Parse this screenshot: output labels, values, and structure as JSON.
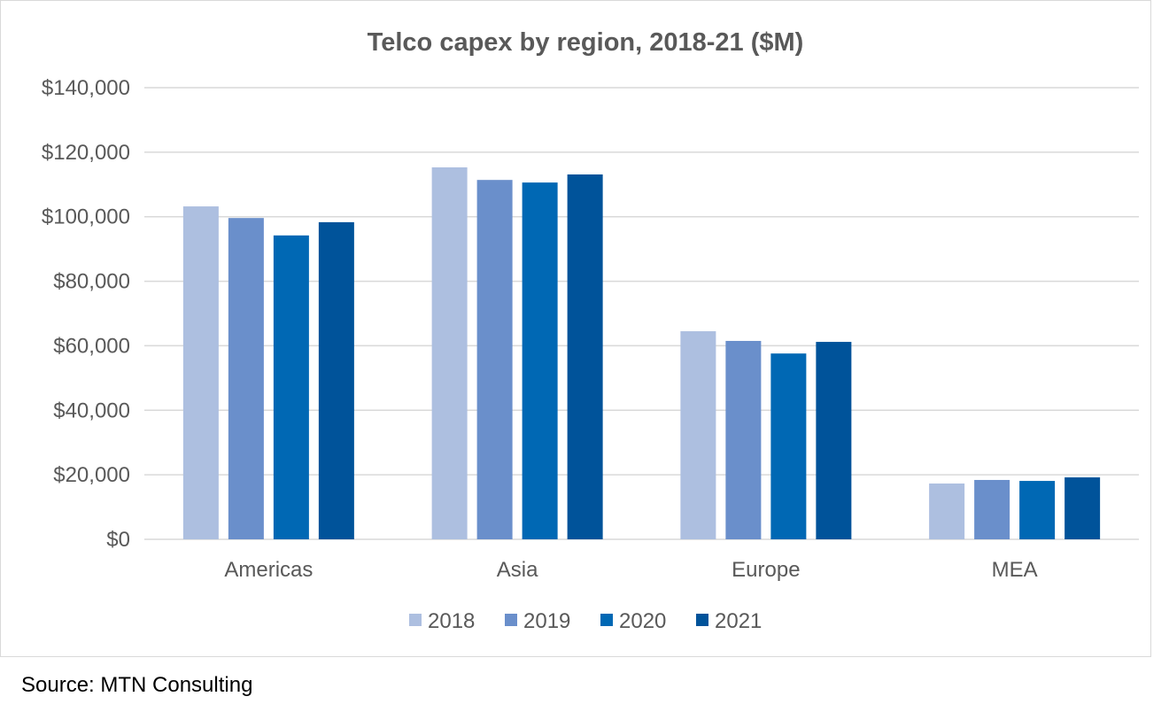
{
  "chart_data": {
    "type": "bar",
    "title": "Telco capex by region, 2018-21 ($M)",
    "xlabel": "",
    "ylabel": "",
    "ylim": [
      0,
      140000
    ],
    "yticks": [
      0,
      20000,
      40000,
      60000,
      80000,
      100000,
      120000,
      140000
    ],
    "ytick_labels": [
      "$0",
      "$20,000",
      "$40,000",
      "$60,000",
      "$80,000",
      "$100,000",
      "$120,000",
      "$140,000"
    ],
    "grid": true,
    "legend": "bottom",
    "categories": [
      "Americas",
      "Asia",
      "Europe",
      "MEA"
    ],
    "series": [
      {
        "name": "2018",
        "color": "#adbfe0",
        "values": [
          103200,
          115300,
          64500,
          17300
        ]
      },
      {
        "name": "2019",
        "color": "#6a8fcb",
        "values": [
          99600,
          111400,
          61500,
          18400
        ]
      },
      {
        "name": "2020",
        "color": "#0068b4",
        "values": [
          94200,
          110600,
          57600,
          18100
        ]
      },
      {
        "name": "2021",
        "color": "#00539a",
        "values": [
          98300,
          113100,
          61200,
          19200
        ]
      }
    ]
  },
  "source": "Source: MTN Consulting"
}
